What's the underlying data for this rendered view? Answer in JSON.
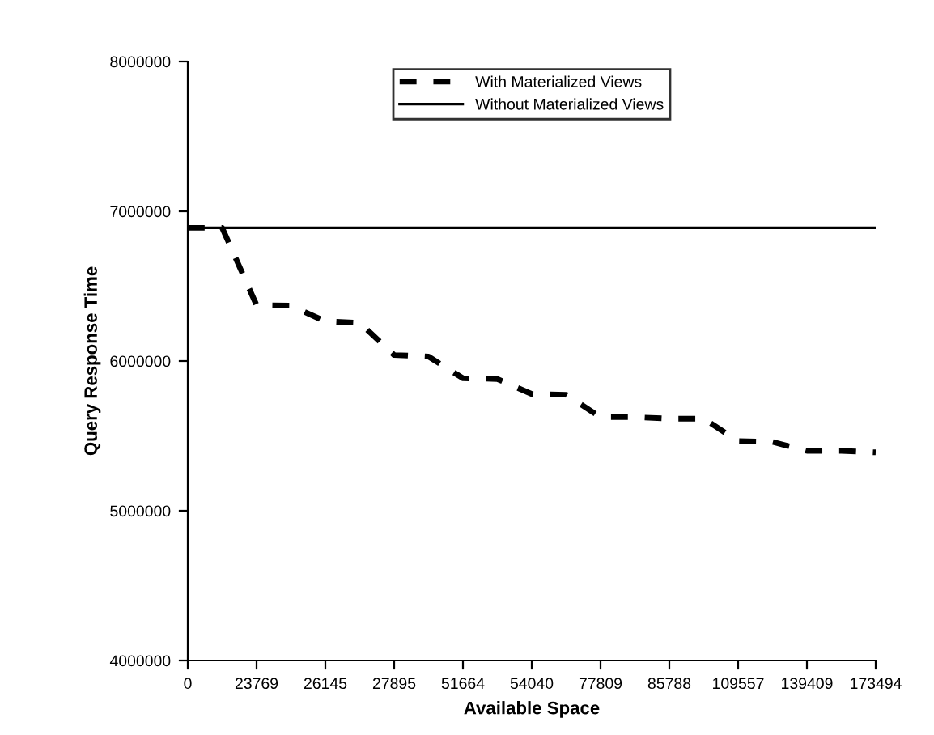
{
  "chart_data": {
    "type": "line",
    "xlabel": "Available Space",
    "ylabel": "Query Response Time",
    "categories": [
      "0",
      null,
      "23769",
      null,
      "26145",
      null,
      "27895",
      null,
      "51664",
      null,
      "54040",
      null,
      "77809",
      null,
      "85788",
      null,
      "109557",
      null,
      "139409",
      null,
      "173494"
    ],
    "series": [
      {
        "name": "With Materialized Views",
        "color": "#000000",
        "line_style": "dashed",
        "values": [
          6890000,
          6890000,
          6373000,
          6370000,
          6265000,
          6255000,
          6040000,
          6030000,
          5885000,
          5880000,
          5780000,
          5775000,
          5625000,
          5625000,
          5615000,
          5615000,
          5465000,
          5460000,
          5400000,
          5400000,
          5390000
        ]
      },
      {
        "name": "Without Materialized Views",
        "color": "#000000",
        "line_style": "solid",
        "values": [
          6890000,
          6890000,
          6890000,
          6890000,
          6890000,
          6890000,
          6890000,
          6890000,
          6890000,
          6890000,
          6890000,
          6890000,
          6890000,
          6890000,
          6890000,
          6890000,
          6890000,
          6890000,
          6890000,
          6890000,
          6890000
        ]
      }
    ],
    "ylim": [
      4000000,
      8000000
    ],
    "yticks": [
      4000000,
      5000000,
      6000000,
      7000000,
      8000000
    ],
    "grid": false,
    "legend": "top",
    "marker": "none"
  }
}
